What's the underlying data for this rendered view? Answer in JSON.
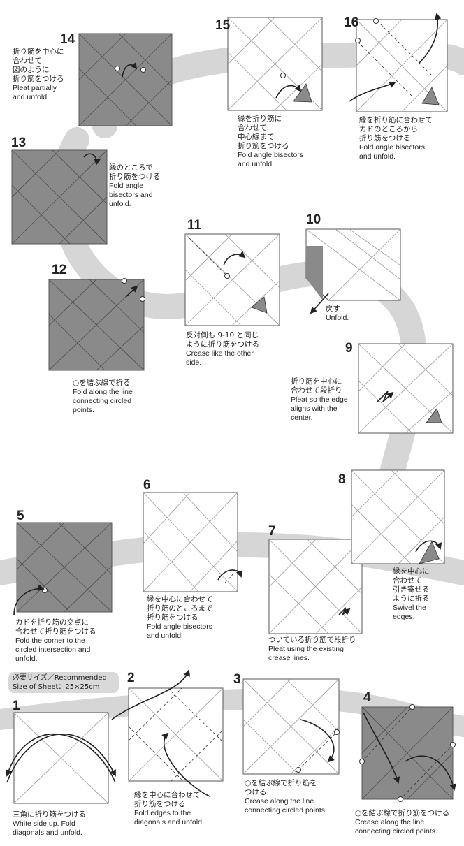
{
  "colors": {
    "paper_color": "#ffffff",
    "paper_back": "#8a8a8a",
    "road": "#d6d6d6",
    "line": "#666666"
  },
  "sheet_size": {
    "label": "必要サイズ／Recommended",
    "value": "Size of Sheet：25×25cm"
  },
  "steps": [
    {
      "num": "1",
      "jp": [
        "三角に折り筋をつける"
      ],
      "en": [
        "White side up.  Fold",
        "diagonals and unfold."
      ]
    },
    {
      "num": "2",
      "jp": [
        "縁を中心に合わせて",
        "折り筋をつける"
      ],
      "en": [
        "Fold edges to the",
        "diagonals and unfold."
      ]
    },
    {
      "num": "3",
      "jp": [
        "○を結ぶ線で折り筋を",
        "つける"
      ],
      "en": [
        "Crease along the line",
        "connecting circled points."
      ]
    },
    {
      "num": "4",
      "jp": [
        "○を結ぶ線で折り筋をつける"
      ],
      "en": [
        "Crease along the line",
        "connecting circled points."
      ]
    },
    {
      "num": "5",
      "jp": [
        "カドを折り筋の交点に",
        "合わせて折り筋をつける"
      ],
      "en": [
        "Fold the corner to the",
        "circled intersection and",
        "unfold."
      ]
    },
    {
      "num": "6",
      "jp": [
        "縁を中心に合わせて",
        "折り筋のところまで",
        "折り筋をつける"
      ],
      "en": [
        "Fold angle bisectors",
        "and unfold."
      ]
    },
    {
      "num": "7",
      "jp": [
        "ついている折り筋で段折り"
      ],
      "en": [
        "Pleat using the existing",
        "crease lines."
      ]
    },
    {
      "num": "8",
      "jp": [
        "縁を中心に",
        "合わせて",
        "引き寄せる",
        "ように折る"
      ],
      "en": [
        "Swivel the",
        "edges."
      ]
    },
    {
      "num": "9",
      "jp": [
        "折り筋を中心に",
        "合わせて段折り"
      ],
      "en": [
        "Pleat so the edge",
        "aligns with the",
        "center."
      ]
    },
    {
      "num": "10",
      "jp": [
        "戻す"
      ],
      "en": [
        "Unfold."
      ]
    },
    {
      "num": "11",
      "jp": [
        "反対側も 9-10 と同じ",
        "ように折り筋をつける"
      ],
      "en": [
        "Crease like the other",
        "side."
      ]
    },
    {
      "num": "12",
      "jp": [
        "○を結ぶ線で折る"
      ],
      "en": [
        "Fold along the line",
        "connecting circled",
        "points."
      ]
    },
    {
      "num": "13",
      "jp": [
        "縁のところで",
        "折り筋をつける"
      ],
      "en": [
        "Fold angle",
        "bisectors and",
        "unfold."
      ]
    },
    {
      "num": "14",
      "jp": [
        "折り筋を中心に",
        "合わせて",
        "図のように",
        "折り筋をつける"
      ],
      "en": [
        "Pleat partially",
        "and unfold."
      ]
    },
    {
      "num": "15",
      "jp": [
        "縁を折り筋に",
        "合わせて",
        "中心線まで",
        "折り筋をつける"
      ],
      "en": [
        "Fold angle bisectors",
        "and unfold."
      ]
    },
    {
      "num": "16",
      "jp": [
        "縁を折り筋に合わせて",
        "カドのところから",
        "折り筋をつける"
      ],
      "en": [
        "Fold angle bisectors",
        "and unfold."
      ]
    }
  ]
}
